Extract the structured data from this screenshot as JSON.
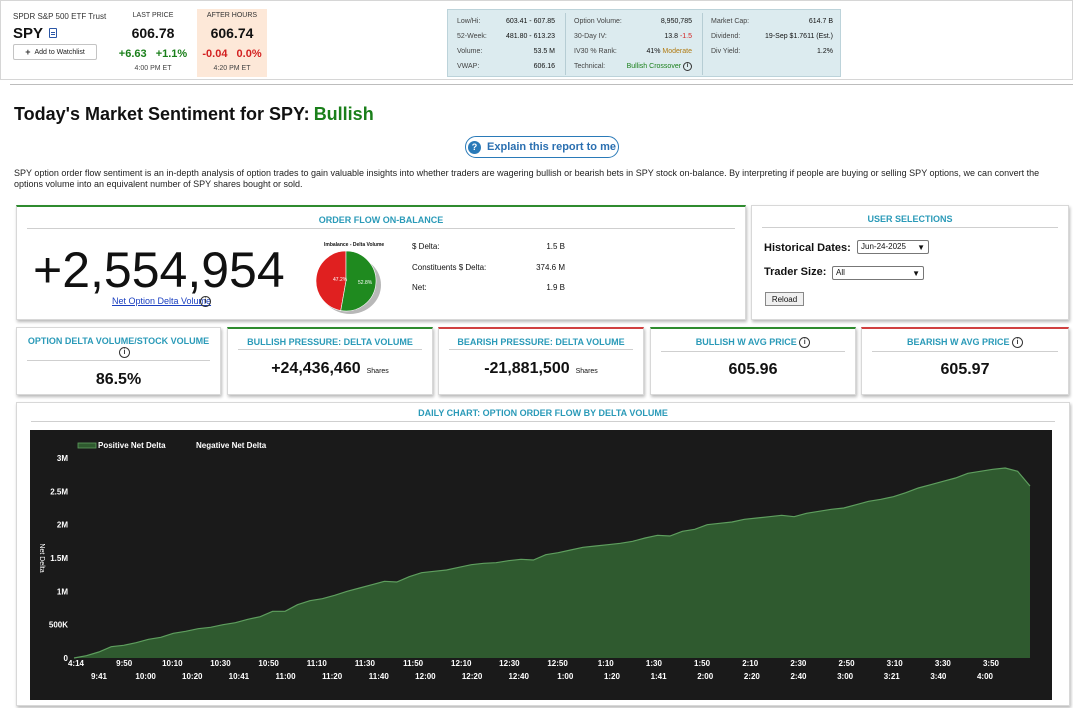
{
  "quote": {
    "name": "SPDR S&P 500 ETF Trust",
    "symbol": "SPY",
    "watchlist_label": "Add to Watchlist",
    "last_price_label": "LAST PRICE",
    "last_price": "606.78",
    "last_change": "+6.63",
    "last_change_pct": "+1.1%",
    "last_time": "4:00 PM ET",
    "after_hours_label": "AFTER HOURS",
    "after_price": "606.74",
    "after_change": "-0.04",
    "after_change_pct": "0.0%",
    "after_time": "4:20 PM ET"
  },
  "stats": {
    "low_high_label": "Low/Hi:",
    "low_high": "603.41 - 607.85",
    "week52_label": "52-Week:",
    "week52": "481.80 - 613.23",
    "volume_label": "Volume:",
    "volume": "53.5 M",
    "vwap_label": "VWAP:",
    "vwap": "606.16",
    "opt_vol_label": "Option Volume:",
    "opt_vol": "8,950,785",
    "iv30_label": "30-Day IV:",
    "iv30": "13.8",
    "iv30_chg": "-1.5",
    "ivrank_label": "IV30 % Rank:",
    "ivrank": "41%",
    "ivrank_desc": "Moderate",
    "technical_label": "Technical:",
    "technical": "Bullish Crossover",
    "mktcap_label": "Market Cap:",
    "mktcap": "614.7 B",
    "dividend_label": "Dividend:",
    "dividend": "19-Sep $1.7611 (Est.)",
    "yield_label": "Div Yield:",
    "yield": "1.2%"
  },
  "page": {
    "title_prefix": "Today's Market Sentiment for SPY:",
    "sentiment": "Bullish",
    "explain_label": "Explain this report to me",
    "description": "SPY option order flow sentiment is an in-depth analysis of option trades to gain valuable insights into whether traders are wagering bullish or bearish bets in SPY stock on-balance. By interpreting if people are buying or selling SPY options, we can convert the options volume into an equivalent number of SPY shares bought or sold."
  },
  "order_flow": {
    "title": "ORDER FLOW ON-BALANCE",
    "net_delta_volume": "+2,554,954",
    "net_delta_label": "Net Option Delta Volume",
    "pie_title": "Imbalance - Delta Volume",
    "pie": [
      {
        "label": "47.2%",
        "value": 47.2,
        "color": "#e02020"
      },
      {
        "label": "52.8%",
        "value": 52.8,
        "color": "#1f8a1f"
      }
    ],
    "rows": [
      {
        "label": "$ Delta:",
        "value": "1.5 B"
      },
      {
        "label": "Constituents $ Delta:",
        "value": "374.6 M"
      },
      {
        "label": "Net:",
        "value": "1.9 B"
      }
    ]
  },
  "user_selections": {
    "title": "USER SELECTIONS",
    "historical_label": "Historical Dates:",
    "historical_value": "Jun-24-2025",
    "trader_label": "Trader Size:",
    "trader_value": "All",
    "reload_label": "Reload"
  },
  "metrics": [
    {
      "title": "OPTION DELTA VOLUME/STOCK VOLUME",
      "value": "86.5%",
      "unit": ""
    },
    {
      "title": "BULLISH PRESSURE: DELTA VOLUME",
      "value": "+24,436,460",
      "unit": "Shares"
    },
    {
      "title": "BEARISH PRESSURE: DELTA VOLUME",
      "value": "-21,881,500",
      "unit": "Shares"
    },
    {
      "title": "BULLISH W AVG PRICE",
      "value": "605.96",
      "unit": ""
    },
    {
      "title": "BEARISH W AVG PRICE",
      "value": "605.97",
      "unit": ""
    }
  ],
  "chart_data": {
    "type": "area",
    "title": "DAILY CHART: OPTION ORDER FLOW BY DELTA VOLUME",
    "ylabel": "Net Delta",
    "legend": [
      "Positive Net Delta",
      "Negative Net Delta"
    ],
    "legend_placement": "top-left",
    "colors": {
      "positive": "#2f5a2f",
      "positive_line": "#5e9e5e",
      "negative": "#9a1a1a",
      "background": "#1a1a1a"
    },
    "ylim": [
      0,
      3000000
    ],
    "yticks": [
      {
        "v": 0,
        "label": "0"
      },
      {
        "v": 500000,
        "label": "500K"
      },
      {
        "v": 1000000,
        "label": "1M"
      },
      {
        "v": 1500000,
        "label": "1.5M"
      },
      {
        "v": 2000000,
        "label": "2M"
      },
      {
        "v": 2500000,
        "label": "2.5M"
      },
      {
        "v": 3000000,
        "label": "3M"
      }
    ],
    "xticks_top": [
      "4:14",
      "9:50",
      "10:10",
      "10:30",
      "10:50",
      "11:10",
      "11:30",
      "11:50",
      "12:10",
      "12:30",
      "12:50",
      "1:10",
      "1:30",
      "1:50",
      "2:10",
      "2:30",
      "2:50",
      "3:10",
      "3:30",
      "3:50"
    ],
    "xticks_bottom": [
      "9:41",
      "10:00",
      "10:20",
      "10:41",
      "11:00",
      "11:20",
      "11:40",
      "12:00",
      "12:20",
      "12:40",
      "1:00",
      "1:20",
      "1:41",
      "2:00",
      "2:20",
      "2:40",
      "3:00",
      "3:21",
      "3:40",
      "4:00"
    ],
    "values": [
      0,
      35000,
      90000,
      170000,
      190000,
      230000,
      280000,
      310000,
      370000,
      400000,
      440000,
      460000,
      500000,
      530000,
      580000,
      620000,
      700000,
      700000,
      800000,
      860000,
      890000,
      940000,
      1000000,
      1050000,
      1100000,
      1150000,
      1140000,
      1220000,
      1280000,
      1300000,
      1320000,
      1360000,
      1400000,
      1420000,
      1430000,
      1460000,
      1480000,
      1470000,
      1550000,
      1580000,
      1620000,
      1660000,
      1680000,
      1700000,
      1720000,
      1750000,
      1800000,
      1840000,
      1830000,
      1900000,
      1930000,
      2000000,
      2020000,
      2040000,
      2080000,
      2100000,
      2120000,
      2140000,
      2120000,
      2170000,
      2200000,
      2230000,
      2250000,
      2300000,
      2350000,
      2380000,
      2420000,
      2480000,
      2550000,
      2600000,
      2650000,
      2700000,
      2770000,
      2800000,
      2830000,
      2850000,
      2800000,
      2580000
    ]
  }
}
